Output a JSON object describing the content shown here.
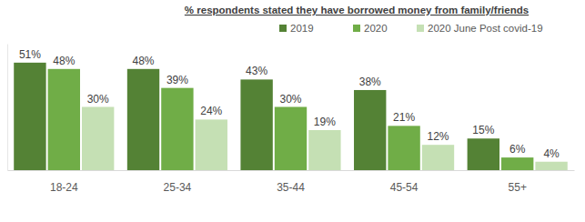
{
  "chart_data": {
    "type": "bar",
    "title": "% respondents stated they have borrowed money from family/friends",
    "categories": [
      "18-24",
      "25-34",
      "35-44",
      "45-54",
      "55+"
    ],
    "series": [
      {
        "name": "2019",
        "color": "#548235",
        "values": [
          51,
          48,
          43,
          38,
          15
        ],
        "value_labels": [
          "51%",
          "48%",
          "43%",
          "38%",
          "15%"
        ]
      },
      {
        "name": "2020",
        "color": "#70ad47",
        "values": [
          48,
          39,
          30,
          21,
          6
        ],
        "value_labels": [
          "48%",
          "39%",
          "30%",
          "21%",
          "6%"
        ]
      },
      {
        "name": "2020 June Post covid-19",
        "color": "#c5e0b4",
        "values": [
          30,
          24,
          19,
          12,
          4
        ],
        "value_labels": [
          "30%",
          "24%",
          "19%",
          "12%",
          "4%"
        ]
      }
    ],
    "ylim": [
      0,
      60
    ],
    "grid": false,
    "legend": "top",
    "data_labels": true,
    "tick_labels": "x"
  }
}
